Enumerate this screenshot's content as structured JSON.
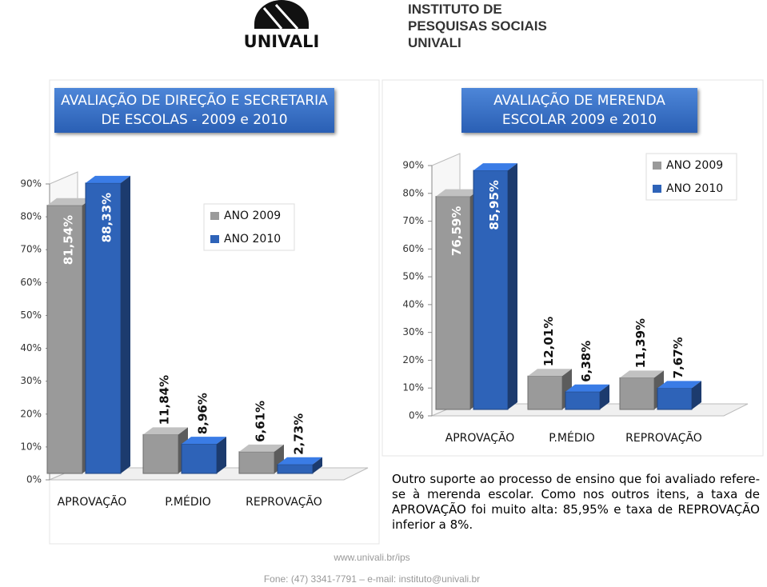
{
  "header": {
    "logo": "UNIVALI",
    "institute": [
      "INSTITUTO DE",
      "PESQUISAS SOCIAIS",
      "UNIVALI"
    ]
  },
  "chart_data": [
    {
      "type": "bar3d",
      "title": "AVALIAÇÃO DE DIREÇÃO E SECRETARIA DE ESCOLAS - 2009 e 2010",
      "categories": [
        "APROVAÇÃO",
        "P.MÉDIO",
        "REPROVAÇÃO"
      ],
      "series": [
        {
          "name": "ANO 2009",
          "color": "#9a9a9a",
          "values": [
            81.54,
            11.84,
            6.61
          ],
          "value_labels": [
            "81,54%",
            "11,84%",
            "6,61%"
          ]
        },
        {
          "name": "ANO 2010",
          "color": "#2e63b8",
          "values": [
            88.33,
            8.96,
            2.73
          ],
          "value_labels": [
            "88,33%",
            "8,96%",
            "2,73%"
          ]
        }
      ],
      "ylim": [
        0,
        90
      ],
      "yticks": [
        {
          "value": 0,
          "label": "0%"
        },
        {
          "value": 10,
          "label": "10%"
        },
        {
          "value": 20,
          "label": "20%"
        },
        {
          "value": 30,
          "label": "30%"
        },
        {
          "value": 40,
          "label": "40%"
        },
        {
          "value": 50,
          "label": "50%"
        },
        {
          "value": 60,
          "label": "60%"
        },
        {
          "value": 70,
          "label": "70%"
        },
        {
          "value": 80,
          "label": "80%"
        },
        {
          "value": 90,
          "label": "90%"
        }
      ],
      "legend": "top-center"
    },
    {
      "type": "bar3d",
      "title": "AVALIAÇÃO DE MERENDA ESCOLAR 2009 e 2010",
      "categories": [
        "APROVAÇÃO",
        "P.MÉDIO",
        "REPROVAÇÃO"
      ],
      "series": [
        {
          "name": "ANO 2009",
          "color": "#9a9a9a",
          "values": [
            76.59,
            12.01,
            11.39
          ],
          "value_labels": [
            "76,59%",
            "12,01%",
            "11,39%"
          ]
        },
        {
          "name": "ANO 2010",
          "color": "#2e63b8",
          "values": [
            85.95,
            6.38,
            7.67
          ],
          "value_labels": [
            "85,95%",
            "6,38%",
            "7,67%"
          ]
        }
      ],
      "ylim": [
        0,
        90
      ],
      "yticks": [
        {
          "value": 0,
          "label": "0%"
        },
        {
          "value": 10,
          "label": "10%"
        },
        {
          "value": 20,
          "label": "20%"
        },
        {
          "value": 30,
          "label": "30%"
        },
        {
          "value": 40,
          "label": "40%"
        },
        {
          "value": 50,
          "label": "50%"
        },
        {
          "value": 60,
          "label": "60%"
        },
        {
          "value": 70,
          "label": "70%"
        },
        {
          "value": 80,
          "label": "80%"
        },
        {
          "value": 90,
          "label": "90%"
        }
      ],
      "legend": "top-right"
    }
  ],
  "note": "Outro suporte ao processo de ensino que foi avaliado refere-se à merenda escolar. Como nos outros itens, a taxa de APROVAÇÃO foi muito alta: 85,95% e taxa de REPROVAÇÃO inferior a 8%.",
  "footer": [
    "www.univali.br/ips",
    "Fone: (47) 3341-7791 – e-mail: instituto@univali.br"
  ]
}
